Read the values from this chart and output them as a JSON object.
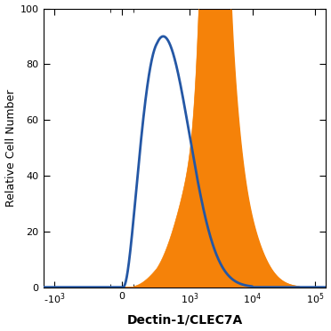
{
  "ylabel": "Relative Cell Number",
  "xlabel": "Dectin-1/CLEC7A",
  "ylim": [
    0,
    100
  ],
  "yticks": [
    0,
    20,
    40,
    60,
    80,
    100
  ],
  "background_color": "#ffffff",
  "blue_color": "#2457a5",
  "orange_color": "#f58209",
  "linthresh": 300,
  "linscale": 0.5,
  "xlim_left": -1500,
  "xlim_right": 150000,
  "xtick_positions": [
    -1000,
    0,
    1000,
    10000,
    100000
  ],
  "xtick_labels": [
    "-10$^3$",
    "0",
    "10$^3$",
    "10$^4$",
    "10$^5$"
  ],
  "blue_peak_x": 380,
  "blue_height": 90,
  "blue_sigma_log": 0.42,
  "orange_components": [
    {
      "peak_x": 1700,
      "height": 47,
      "sigma_log": 0.38
    },
    {
      "peak_x": 2100,
      "height": 85,
      "sigma_log": 0.13
    },
    {
      "peak_x": 2500,
      "height": 80,
      "sigma_log": 0.1
    },
    {
      "peak_x": 2800,
      "height": 60,
      "sigma_log": 0.1
    },
    {
      "peak_x": 3200,
      "height": 58,
      "sigma_log": 0.18
    },
    {
      "peak_x": 5000,
      "height": 25,
      "sigma_log": 0.35
    }
  ],
  "blue_linewidth": 2.0,
  "orange_linewidth": 0.5
}
